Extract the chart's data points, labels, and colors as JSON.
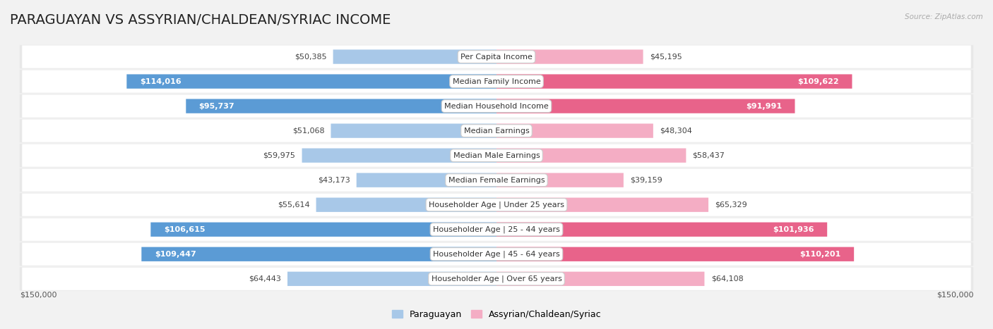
{
  "title": "PARAGUAYAN VS ASSYRIAN/CHALDEAN/SYRIAC INCOME",
  "source": "Source: ZipAtlas.com",
  "categories": [
    "Per Capita Income",
    "Median Family Income",
    "Median Household Income",
    "Median Earnings",
    "Median Male Earnings",
    "Median Female Earnings",
    "Householder Age | Under 25 years",
    "Householder Age | 25 - 44 years",
    "Householder Age | 45 - 64 years",
    "Householder Age | Over 65 years"
  ],
  "paraguayan_values": [
    50385,
    114016,
    95737,
    51068,
    59975,
    43173,
    55614,
    106615,
    109447,
    64443
  ],
  "assyrian_values": [
    45195,
    109622,
    91991,
    48304,
    58437,
    39159,
    65329,
    101936,
    110201,
    64108
  ],
  "max_value": 150000,
  "par_color_large": "#5b9bd5",
  "par_color_small": "#a8c8e8",
  "ass_color_large": "#e8638a",
  "ass_color_small": "#f4adc4",
  "large_threshold": 70000,
  "bar_height": 0.58,
  "row_bg": "#f0f0f0",
  "row_white": "#ffffff",
  "title_fontsize": 14,
  "label_fontsize": 8,
  "value_fontsize": 8,
  "legend_fontsize": 9,
  "xlabel_left": "$150,000",
  "xlabel_right": "$150,000",
  "par_legend": "Paraguayan",
  "ass_legend": "Assyrian/Chaldean/Syriac"
}
